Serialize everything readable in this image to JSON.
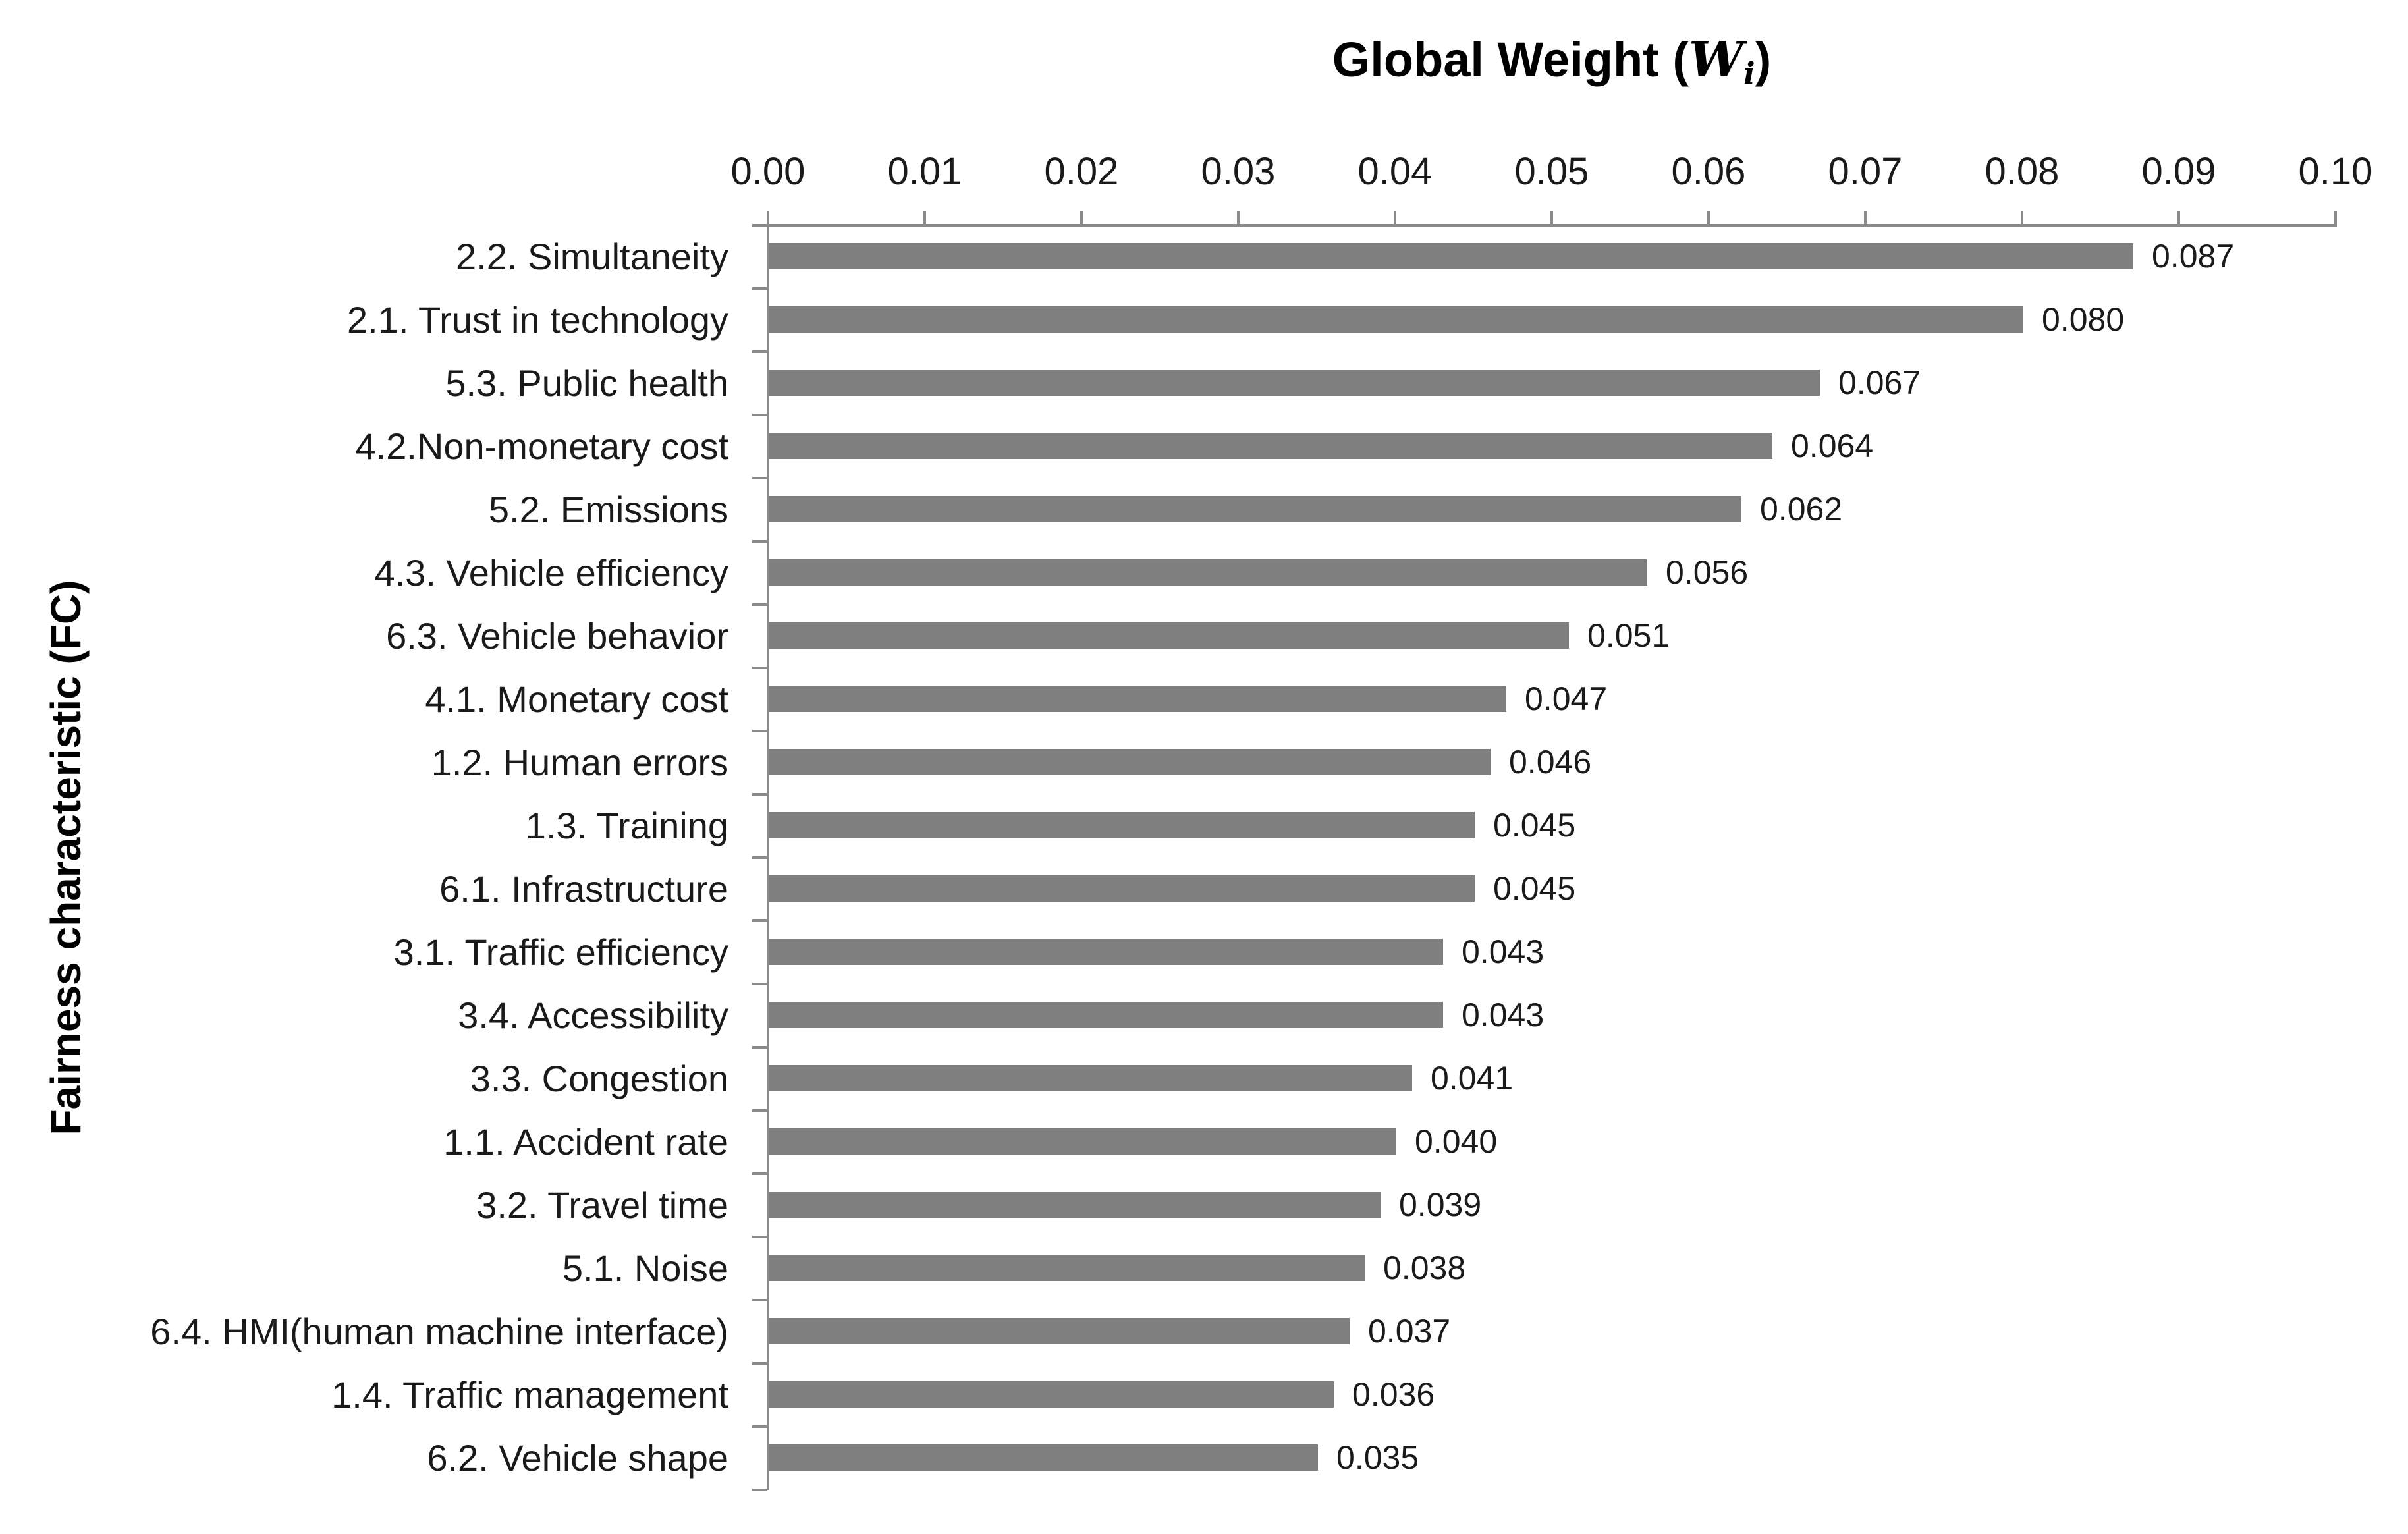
{
  "chart_data": {
    "type": "bar",
    "orientation": "horizontal",
    "title": "Global Weight (Wi)",
    "title_parts": {
      "prefix": "Global Weight (",
      "variable": "W",
      "subscript": "i",
      "suffix": ")"
    },
    "ylabel": "Fairness characteristic (FC)",
    "xlabel": "",
    "categories": [
      "2.2. Simultaneity",
      "2.1. Trust in technology",
      "5.3. Public health",
      "4.2.Non-monetary cost",
      "5.2. Emissions",
      "4.3. Vehicle efficiency",
      "6.3. Vehicle behavior",
      "4.1. Monetary cost",
      "1.2. Human errors",
      "1.3. Training",
      "6.1. Infrastructure",
      "3.1. Traffic efficiency",
      "3.4. Accessibility",
      "3.3. Congestion",
      "1.1. Accident rate",
      "3.2. Travel time",
      "5.1. Noise",
      "6.4. HMI(human machine interface)",
      "1.4. Traffic management",
      "6.2. Vehicle shape"
    ],
    "values": [
      0.087,
      0.08,
      0.067,
      0.064,
      0.062,
      0.056,
      0.051,
      0.047,
      0.046,
      0.045,
      0.045,
      0.043,
      0.043,
      0.041,
      0.04,
      0.039,
      0.038,
      0.037,
      0.036,
      0.035
    ],
    "value_labels": [
      "0.087",
      "0.080",
      "0.067",
      "0.064",
      "0.062",
      "0.056",
      "0.051",
      "0.047",
      "0.046",
      "0.045",
      "0.045",
      "0.043",
      "0.043",
      "0.041",
      "0.040",
      "0.039",
      "0.038",
      "0.037",
      "0.036",
      "0.035"
    ],
    "x_tick_values": [
      0.0,
      0.01,
      0.02,
      0.03,
      0.04,
      0.05,
      0.06,
      0.07,
      0.08,
      0.09,
      0.1
    ],
    "x_tick_labels": [
      "0.00",
      "0.01",
      "0.02",
      "0.03",
      "0.04",
      "0.05",
      "0.06",
      "0.07",
      "0.08",
      "0.09",
      "0.10"
    ],
    "xlim": [
      0.0,
      0.1
    ],
    "grid": false,
    "legend": null,
    "bar_color": "#7f7f7f",
    "axis_color": "#8a8a8a",
    "text_color": "#1a1a1a",
    "background_color": "#ffffff"
  }
}
